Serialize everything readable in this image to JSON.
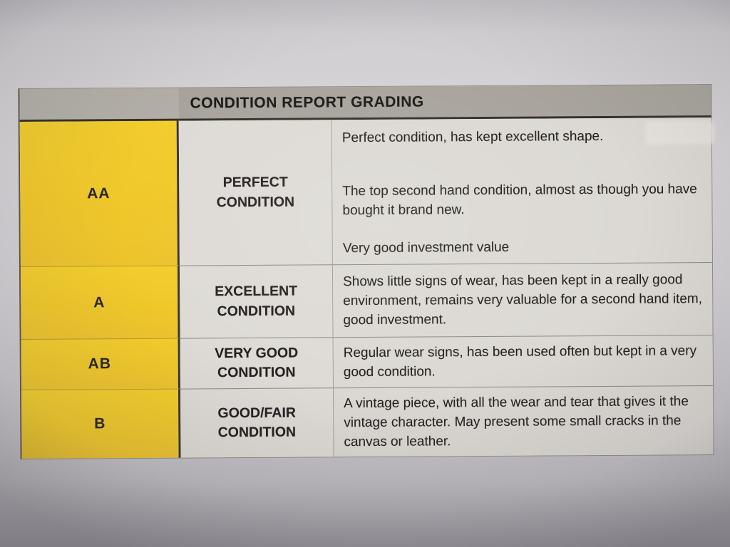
{
  "table": {
    "title": "CONDITION REPORT GRADING",
    "rows": [
      {
        "grade": "AA",
        "label": "PERFECT CONDITION",
        "description": [
          "Perfect condition, has kept excellent shape.",
          "The top second hand condition, almost as though you have bought it brand new.",
          "Very good investment value"
        ]
      },
      {
        "grade": "A",
        "label": "EXCELLENT CONDITION",
        "description": [
          "Shows little signs of wear, has been kept in a really good environment, remains very valuable for a second hand item, good investment."
        ]
      },
      {
        "grade": "AB",
        "label": "VERY GOOD CONDITION",
        "description": [
          "Regular wear signs, has been used often but kept in a very good condition."
        ]
      },
      {
        "grade": "B",
        "label": "GOOD/FAIR CONDITION",
        "description": [
          "A vintage piece, with all the wear and tear that gives it the vintage character. May present some small cracks in the canvas or leather."
        ]
      }
    ]
  },
  "colors": {
    "highlight_yellow": "#f0c92a",
    "header_gray": "#a8a49d",
    "cell_gray": "#dcd9d4",
    "paper_gray": "#cfccd1",
    "text": "#232120"
  }
}
